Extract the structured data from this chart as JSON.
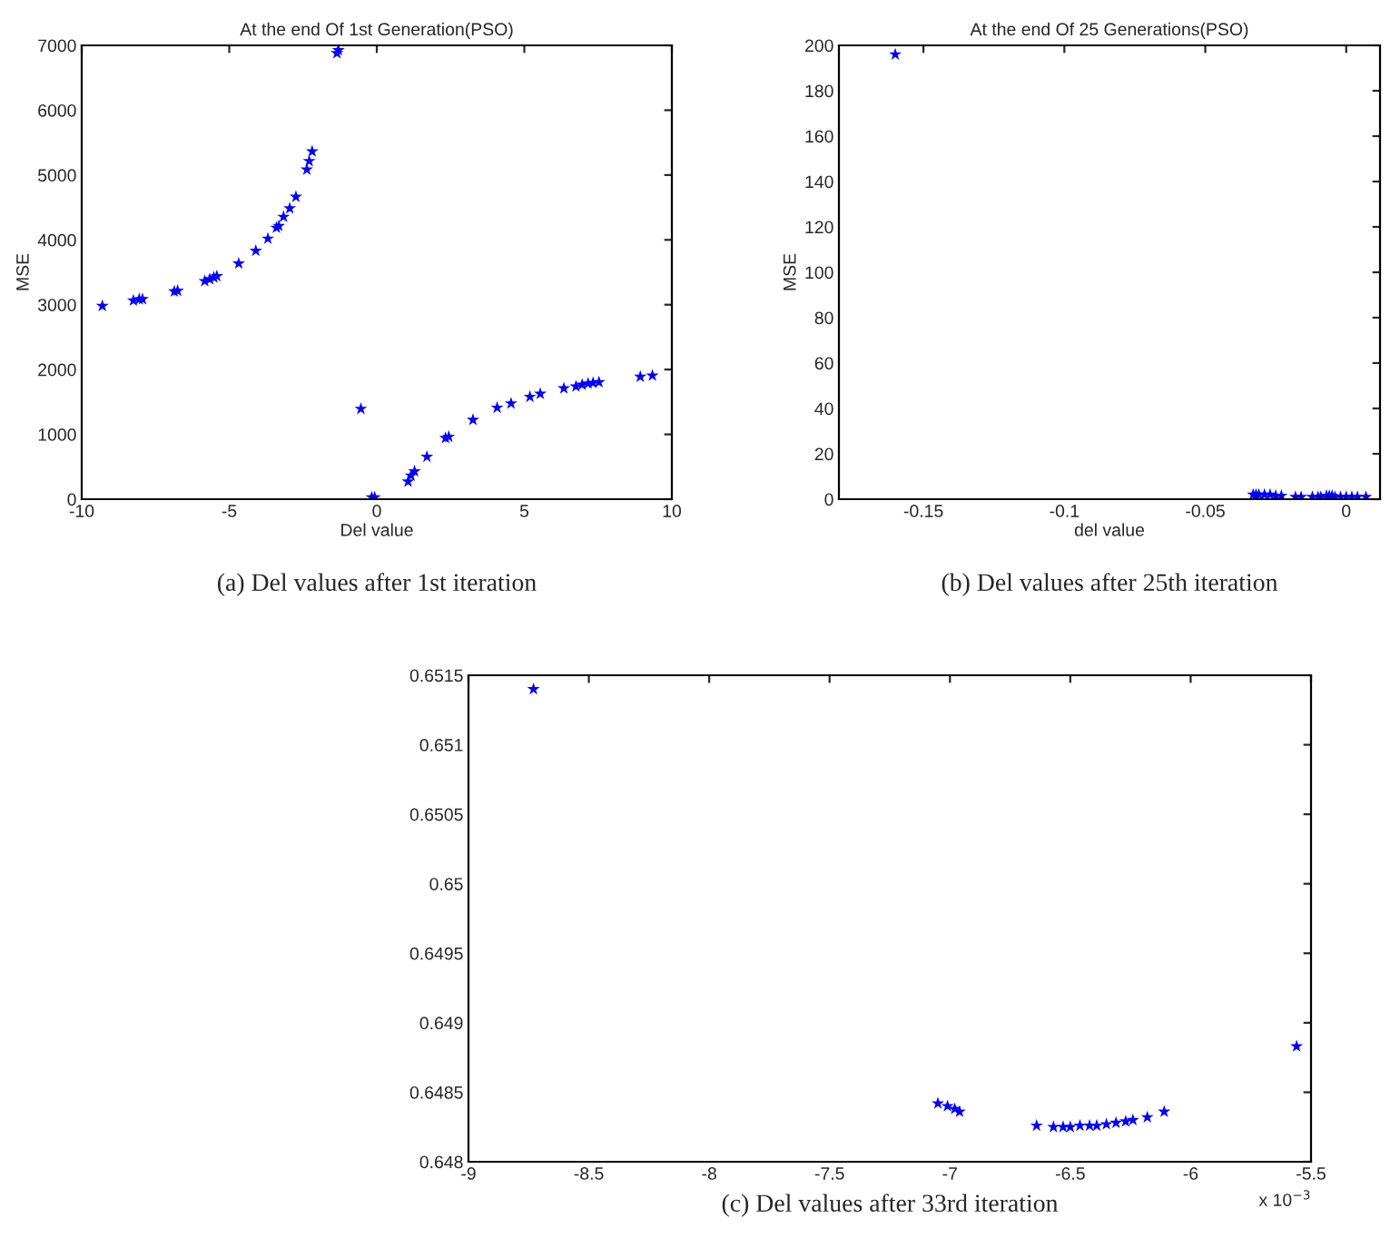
{
  "chart_data": [
    {
      "type": "scatter",
      "title": "At the end Of 1st Generation(PSO)",
      "xlabel": "Del value",
      "ylabel": "MSE",
      "color": "#0000ff",
      "marker": "star",
      "grid": false,
      "legend": false,
      "x": [
        -9.3,
        -8.25,
        -8.05,
        -7.94,
        -6.86,
        -6.75,
        -5.83,
        -5.66,
        -5.52,
        -5.42,
        -4.68,
        -4.1,
        -3.69,
        -3.4,
        -3.32,
        -3.16,
        -2.95,
        -2.74,
        -2.37,
        -2.29,
        -2.19,
        -1.35,
        -1.3,
        -0.54,
        -0.17,
        -0.07,
        1.06,
        1.16,
        1.28,
        1.7,
        2.33,
        2.44,
        3.26,
        4.08,
        4.55,
        5.19,
        5.54,
        6.34,
        6.75,
        6.96,
        7.16,
        7.33,
        7.53,
        8.93,
        9.34
      ],
      "values": [
        2980,
        3065,
        3084,
        3085,
        3205,
        3215,
        3364,
        3393,
        3420,
        3440,
        3636,
        3832,
        4019,
        4187,
        4215,
        4355,
        4486,
        4664,
        5084,
        5215,
        5364,
        6879,
        6925,
        1393,
        28,
        28,
        271,
        364,
        430,
        654,
        944,
        963,
        1224,
        1411,
        1477,
        1579,
        1626,
        1710,
        1738,
        1766,
        1785,
        1794,
        1804,
        1888,
        1907
      ],
      "xlim": [
        -10,
        10
      ],
      "ylim": [
        0,
        7000
      ],
      "xticks": [
        -10,
        -5,
        0,
        5,
        10
      ],
      "yticks": [
        0,
        1000,
        2000,
        3000,
        4000,
        5000,
        6000,
        7000
      ],
      "annotations": [
        "(a) Del values after 1st iteration"
      ]
    },
    {
      "type": "scatter",
      "title": "At the end Of 25 Generations(PSO)",
      "xlabel": "del value",
      "ylabel": "MSE",
      "color": "#0000ff",
      "marker": "star",
      "grid": false,
      "legend": false,
      "x": [
        -0.16,
        -0.033,
        -0.032,
        -0.031,
        -0.029,
        -0.027,
        -0.025,
        -0.023,
        -0.018,
        -0.016,
        -0.012,
        -0.01,
        -0.009,
        -0.007,
        -0.006,
        -0.005,
        -0.004,
        -0.002,
        0,
        0.002,
        0.004,
        0.007
      ],
      "values": [
        196,
        2,
        2,
        2,
        2,
        2,
        1.5,
        1.5,
        1,
        1,
        1,
        1,
        1,
        1.5,
        1.5,
        1.5,
        1,
        1,
        1,
        1,
        1,
        1
      ],
      "xlim": [
        -0.18,
        0.012
      ],
      "ylim": [
        0,
        200
      ],
      "xticks": [
        -0.15,
        -0.1,
        -0.05,
        0
      ],
      "yticks": [
        0,
        20,
        40,
        60,
        80,
        100,
        120,
        140,
        160,
        180,
        200
      ],
      "annotations": [
        "(b) Del values after 25th iteration"
      ]
    },
    {
      "type": "scatter",
      "color": "#0000ff",
      "marker": "star",
      "grid": false,
      "legend": false,
      "x": [
        -8.73,
        -5.56,
        -7.05,
        -7.01,
        -6.98,
        -6.96,
        -6.64,
        -6.57,
        -6.53,
        -6.5,
        -6.46,
        -6.42,
        -6.39,
        -6.35,
        -6.31,
        -6.27,
        -6.24,
        -6.18,
        -6.11
      ],
      "values": [
        0.6514,
        0.64883,
        0.64842,
        0.6484,
        0.64838,
        0.64836,
        0.64826,
        0.64825,
        0.64825,
        0.64825,
        0.64826,
        0.64826,
        0.64826,
        0.64827,
        0.64828,
        0.64829,
        0.6483,
        0.64832,
        0.64836
      ],
      "xlim": [
        -9,
        -5.5
      ],
      "ylim": [
        0.648,
        0.6515
      ],
      "xticks": [
        -9,
        -8.5,
        -8,
        -7.5,
        -7,
        -6.5,
        -6,
        -5.5
      ],
      "yticks": [
        0.648,
        0.6485,
        0.649,
        0.6495,
        0.65,
        0.6505,
        0.651,
        0.6515
      ],
      "annotations": [
        "x 10$^{−3}$",
        "(c) Del values after 33rd iteration"
      ]
    }
  ]
}
